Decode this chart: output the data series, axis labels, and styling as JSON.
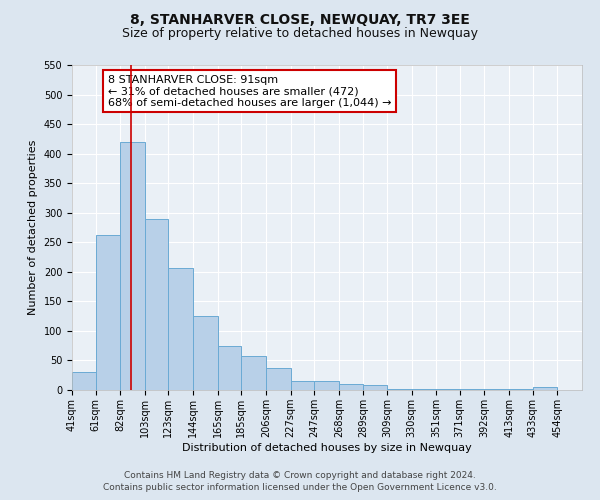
{
  "title": "8, STANHARVER CLOSE, NEWQUAY, TR7 3EE",
  "subtitle": "Size of property relative to detached houses in Newquay",
  "xlabel": "Distribution of detached houses by size in Newquay",
  "ylabel": "Number of detached properties",
  "bin_labels": [
    "41sqm",
    "61sqm",
    "82sqm",
    "103sqm",
    "123sqm",
    "144sqm",
    "165sqm",
    "185sqm",
    "206sqm",
    "227sqm",
    "247sqm",
    "268sqm",
    "289sqm",
    "309sqm",
    "330sqm",
    "351sqm",
    "371sqm",
    "392sqm",
    "413sqm",
    "433sqm",
    "454sqm"
  ],
  "bin_edges": [
    41,
    61,
    82,
    103,
    123,
    144,
    165,
    185,
    206,
    227,
    247,
    268,
    289,
    309,
    330,
    351,
    371,
    392,
    413,
    433,
    454
  ],
  "bar_heights": [
    30,
    262,
    420,
    290,
    207,
    125,
    75,
    58,
    38,
    15,
    15,
    10,
    8,
    2,
    2,
    2,
    1,
    1,
    1,
    5
  ],
  "bar_color": "#b8d0e8",
  "bar_edge_color": "#6aaad4",
  "vline_x": 91,
  "vline_color": "#cc0000",
  "ylim": [
    0,
    550
  ],
  "yticks": [
    0,
    50,
    100,
    150,
    200,
    250,
    300,
    350,
    400,
    450,
    500,
    550
  ],
  "annotation_title": "8 STANHARVER CLOSE: 91sqm",
  "annotation_line1": "← 31% of detached houses are smaller (472)",
  "annotation_line2": "68% of semi-detached houses are larger (1,044) →",
  "annotation_box_facecolor": "#ffffff",
  "annotation_box_edgecolor": "#cc0000",
  "footer_line1": "Contains HM Land Registry data © Crown copyright and database right 2024.",
  "footer_line2": "Contains public sector information licensed under the Open Government Licence v3.0.",
  "bg_color": "#dce6f0",
  "plot_bg_color": "#eaf0f6",
  "grid_color": "#ffffff",
  "title_fontsize": 10,
  "subtitle_fontsize": 9,
  "axis_label_fontsize": 8,
  "tick_fontsize": 7,
  "annotation_fontsize": 8,
  "footer_fontsize": 6.5
}
